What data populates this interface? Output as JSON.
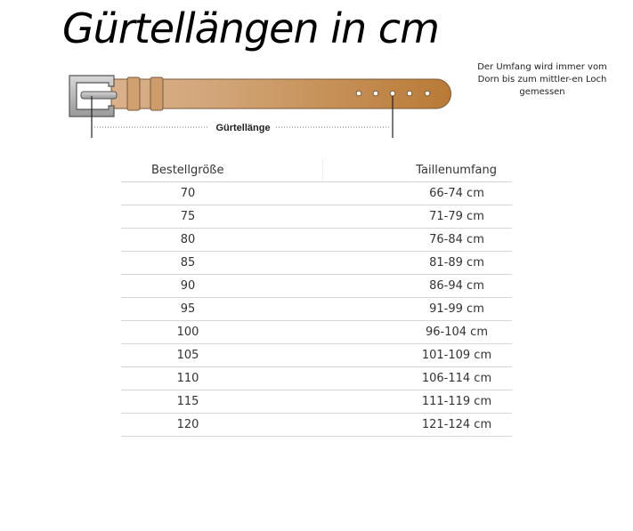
{
  "title": "Gürtellängen in cm",
  "note": "Der Umfang wird immer vom Dorn bis zum mittler-en Loch gemessen",
  "diagram": {
    "label": "Gürtellänge",
    "belt_color": "#c48a4e",
    "buckle_color": "#b9b9b9"
  },
  "table": {
    "headers": [
      "Bestellgröße",
      "Taillenumfang"
    ],
    "rows": [
      [
        "70",
        "66-74 cm"
      ],
      [
        "75",
        "71-79 cm"
      ],
      [
        "80",
        "76-84 cm"
      ],
      [
        "85",
        "81-89 cm"
      ],
      [
        "90",
        "86-94 cm"
      ],
      [
        "95",
        "91-99 cm"
      ],
      [
        "100",
        "96-104 cm"
      ],
      [
        "105",
        "101-109 cm"
      ],
      [
        "110",
        "106-114 cm"
      ],
      [
        "115",
        "111-119 cm"
      ],
      [
        "120",
        "121-124 cm"
      ]
    ]
  }
}
